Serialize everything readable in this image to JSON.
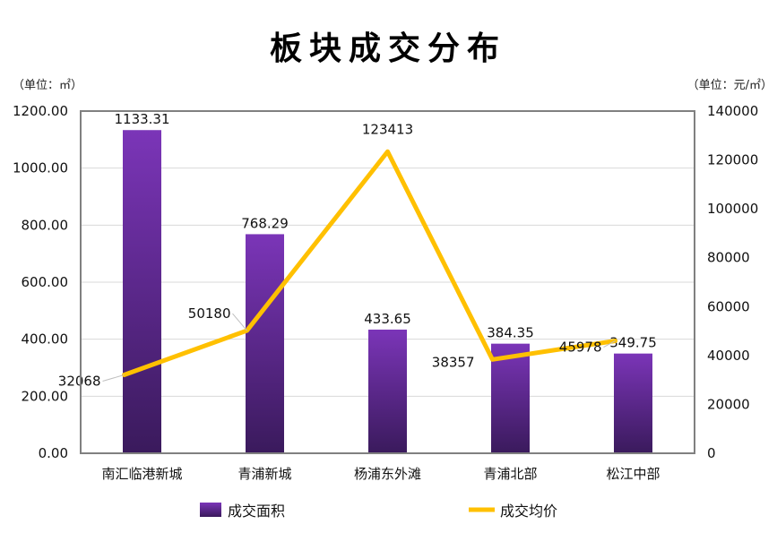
{
  "chart_data": {
    "type": "bar",
    "title": "板块成交分布",
    "left_unit": "（单位：㎡）",
    "right_unit": "（单位：元/㎡）",
    "categories": [
      "南汇临港新城",
      "青浦新城",
      "杨浦东外滩",
      "青浦北部",
      "松江中部"
    ],
    "series": [
      {
        "name": "成交面积",
        "kind": "bar",
        "axis": "left",
        "values": [
          1133.31,
          768.29,
          433.65,
          384.35,
          349.75
        ],
        "labels": [
          "1133.31",
          "768.29",
          "433.65",
          "384.35",
          "349.75"
        ],
        "color_top": "#7b35b8",
        "color_bottom": "#3a1a5c"
      },
      {
        "name": "成交均价",
        "kind": "line",
        "axis": "right",
        "values": [
          32068,
          50180,
          123413,
          38357,
          45978
        ],
        "labels": [
          "32068",
          "50180",
          "123413",
          "38357",
          "45978"
        ],
        "color": "#ffc000"
      }
    ],
    "left_axis": {
      "ylim": [
        0,
        1200
      ],
      "ticks": [
        0,
        200,
        400,
        600,
        800,
        1000,
        1200
      ],
      "tick_labels": [
        "0.00",
        "200.00",
        "400.00",
        "600.00",
        "800.00",
        "1000.00",
        "1200.00"
      ]
    },
    "right_axis": {
      "ylim": [
        0,
        140000
      ],
      "ticks": [
        0,
        20000,
        40000,
        60000,
        80000,
        100000,
        120000,
        140000
      ],
      "tick_labels": [
        "0",
        "20000",
        "40000",
        "60000",
        "80000",
        "100000",
        "120000",
        "140000"
      ]
    },
    "grid": true,
    "legend_position": "bottom"
  }
}
